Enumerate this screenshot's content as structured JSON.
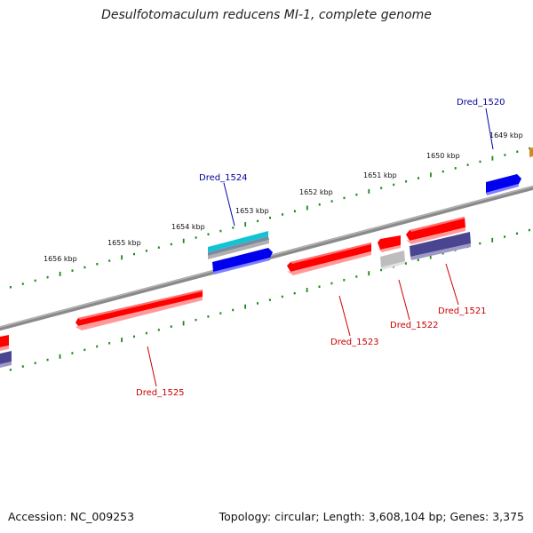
{
  "title": "Desulfotomaculum reducens MI-1, complete genome",
  "footer": {
    "accession": "Accession: NC_009253",
    "summary": "Topology: circular; Length: 3,608,104 bp; Genes: 3,375"
  },
  "colors": {
    "backbone": "#888888",
    "ticks": "#1a8a1a",
    "forward_gene": "#ff0000",
    "reverse_gene": "#0000ff",
    "forward_label": "#cc0000",
    "reverse_label": "#000099",
    "rna_cyan": "#11c4d4",
    "pseudo_gray": "#bbbbbb",
    "dark_purple": "#4a4590"
  },
  "scale": {
    "labels": [
      "1656 kbp",
      "1655 kbp",
      "1654 kbp",
      "1653 kbp",
      "1652 kbp",
      "1651 kbp",
      "1650 kbp",
      "1649 kbp"
    ]
  },
  "genes": [
    {
      "name": "Dred_1520",
      "strand": "reverse"
    },
    {
      "name": "Dred_1521",
      "strand": "forward"
    },
    {
      "name": "Dred_1522",
      "strand": "forward"
    },
    {
      "name": "Dred_1523",
      "strand": "forward"
    },
    {
      "name": "Dred_1524",
      "strand": "reverse"
    },
    {
      "name": "Dred_1525",
      "strand": "forward"
    }
  ]
}
